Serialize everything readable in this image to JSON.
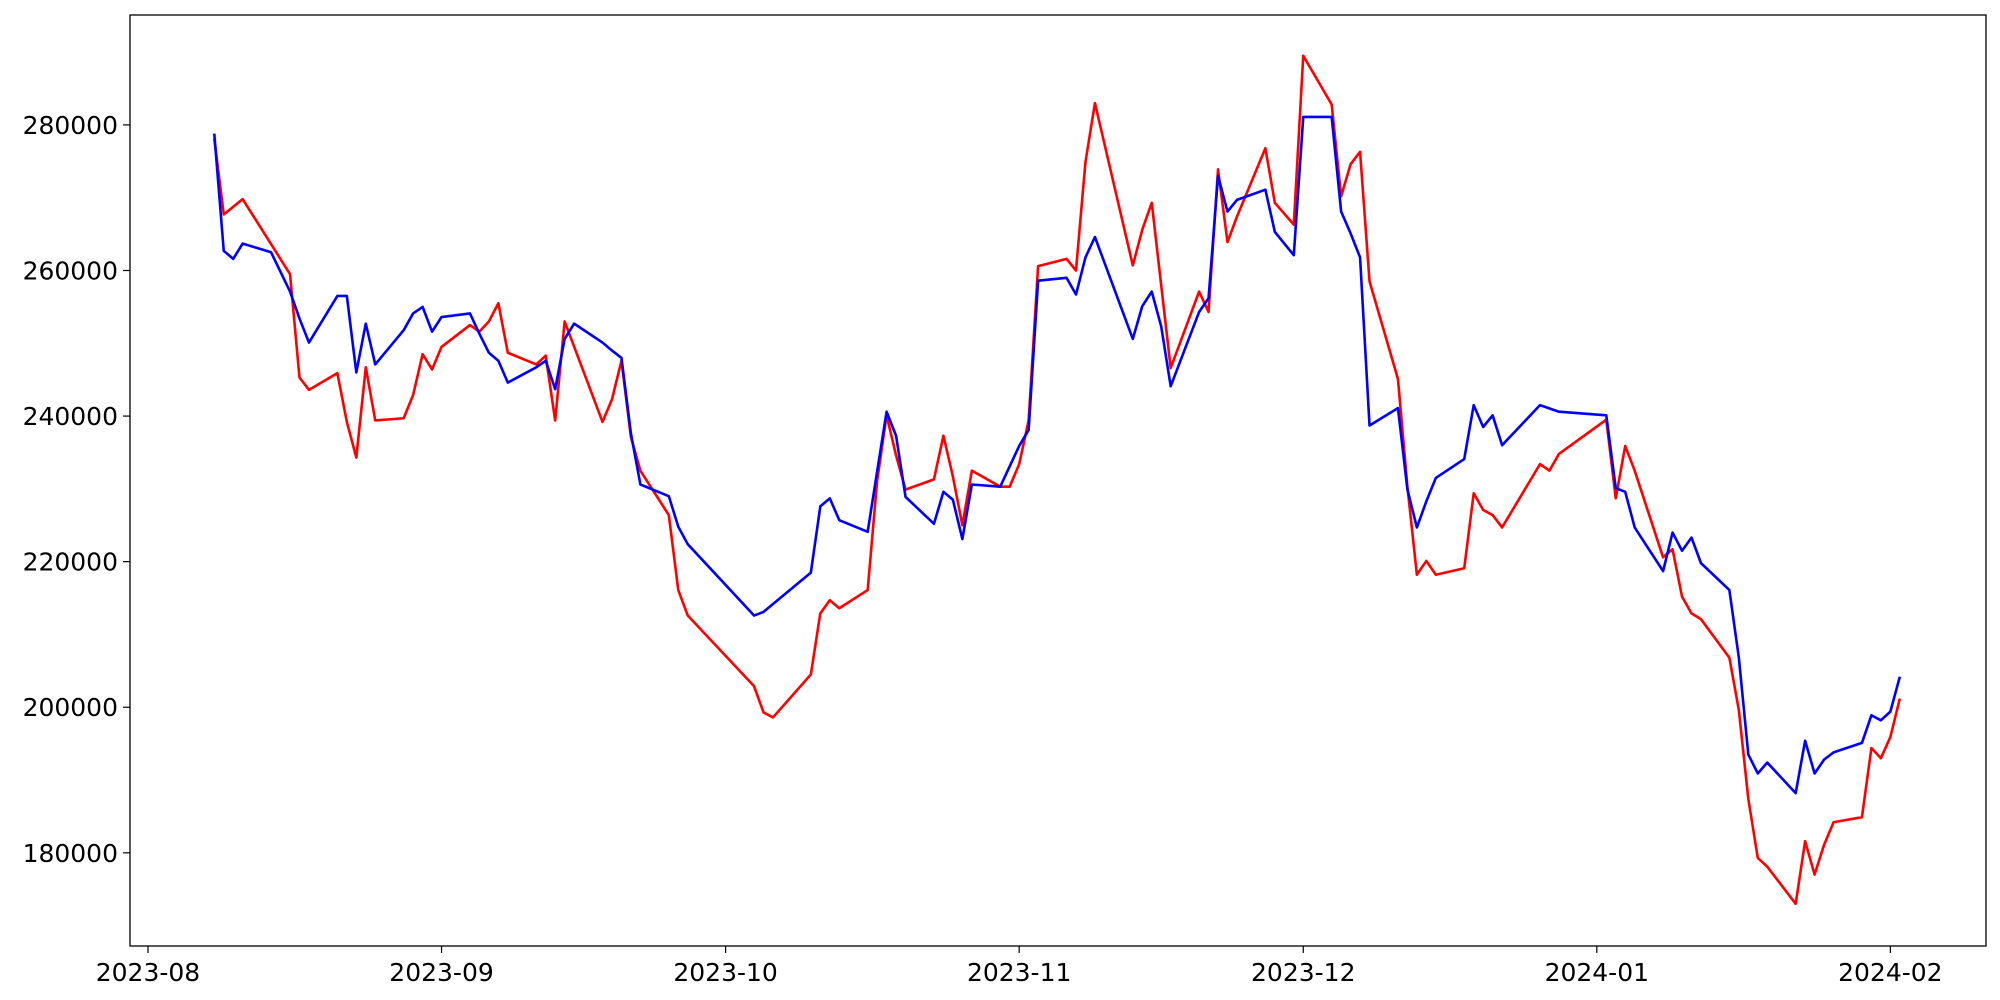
{
  "chart_data": {
    "type": "line",
    "xlim": [
      19568.1,
      19764.1
    ],
    "ylim": [
      167200,
      295100
    ],
    "xticks": [
      {
        "value": 19570,
        "label": "2023-08"
      },
      {
        "value": 19601,
        "label": "2023-09"
      },
      {
        "value": 19631,
        "label": "2023-10"
      },
      {
        "value": 19662,
        "label": "2023-11"
      },
      {
        "value": 19692,
        "label": "2023-12"
      },
      {
        "value": 19723,
        "label": "2024-01"
      },
      {
        "value": 19754,
        "label": "2024-02"
      }
    ],
    "yticks": [
      180000,
      200000,
      220000,
      240000,
      260000,
      280000
    ],
    "grid": false,
    "series": [
      {
        "color": "#ff0000",
        "x": [
          19577,
          19578,
          19580,
          19585,
          19586,
          19587,
          19590,
          19591,
          19592,
          19593,
          19594,
          19597,
          19598,
          19599,
          19600,
          19601,
          19604,
          19605,
          19606,
          19607,
          19608,
          19611,
          19612,
          19613,
          19614,
          19618,
          19619,
          19620,
          19621,
          19622,
          19625,
          19626,
          19627,
          19634,
          19635,
          19636,
          19640,
          19641,
          19642,
          19643,
          19646,
          19647,
          19648,
          19649,
          19650,
          19653,
          19654,
          19655,
          19656,
          19657,
          19660,
          19661,
          19662,
          19663,
          19664,
          19667,
          19668,
          19669,
          19670,
          19674,
          19675,
          19676,
          19678,
          19681,
          19682,
          19683,
          19684,
          19685,
          19688,
          19689,
          19691,
          19692,
          19695,
          19696,
          19697,
          19698,
          19699,
          19702,
          19703,
          19704,
          19705,
          19706,
          19709,
          19710,
          19711,
          19712,
          19713,
          19717,
          19718,
          19719,
          19724,
          19725,
          19726,
          19727,
          19730,
          19731,
          19732,
          19733,
          19734,
          19737,
          19738,
          19739,
          19740,
          19741,
          19744,
          19745,
          19746,
          19747,
          19748,
          19751,
          19752,
          19753,
          19754,
          19755
        ],
        "values": [
          278100,
          267700,
          269800,
          259500,
          245300,
          243600,
          245900,
          239200,
          234300,
          246700,
          239400,
          239700,
          242900,
          248500,
          246400,
          249500,
          252500,
          251600,
          253000,
          255500,
          248700,
          247100,
          248300,
          239400,
          253000,
          239200,
          242300,
          247600,
          237100,
          232500,
          226400,
          216100,
          212600,
          202900,
          199300,
          198600,
          204500,
          212900,
          214700,
          213600,
          216100,
          231100,
          240100,
          234600,
          229900,
          231300,
          237300,
          231700,
          225000,
          232500,
          230300,
          230300,
          233400,
          239400,
          260600,
          261600,
          260000,
          274900,
          283000,
          260700,
          265600,
          269300,
          246600,
          257100,
          254300,
          273900,
          263900,
          267400,
          276800,
          269300,
          266300,
          289500,
          282800,
          270200,
          274600,
          276300,
          258500,
          245100,
          230300,
          218200,
          220100,
          218200,
          219100,
          229400,
          227100,
          226400,
          224700,
          233400,
          232500,
          234800,
          239500,
          228700,
          235900,
          232500,
          220600,
          221700,
          215200,
          212900,
          212100,
          206800,
          199600,
          187400,
          179300,
          178100,
          173000,
          181600,
          177000,
          181100,
          184200,
          184900,
          194400,
          193000,
          195900,
          201200
        ]
      },
      {
        "color": "#0000ff",
        "x": [
          19577,
          19578,
          19579,
          19580,
          19583,
          19585,
          19586,
          19587,
          19590,
          19591,
          19592,
          19593,
          19594,
          19597,
          19598,
          19599,
          19600,
          19601,
          19604,
          19605,
          19606,
          19607,
          19608,
          19611,
          19612,
          19613,
          19614,
          19615,
          19618,
          19619,
          19620,
          19621,
          19622,
          19625,
          19626,
          19627,
          19634,
          19635,
          19640,
          19641,
          19642,
          19643,
          19646,
          19647,
          19648,
          19649,
          19650,
          19653,
          19654,
          19655,
          19656,
          19657,
          19660,
          19662,
          19663,
          19664,
          19667,
          19668,
          19669,
          19670,
          19674,
          19675,
          19676,
          19677,
          19678,
          19681,
          19682,
          19683,
          19684,
          19685,
          19688,
          19689,
          19691,
          19692,
          19695,
          19696,
          19697,
          19698,
          19699,
          19702,
          19703,
          19704,
          19705,
          19706,
          19709,
          19710,
          19711,
          19712,
          19713,
          19717,
          19719,
          19724,
          19725,
          19726,
          19727,
          19730,
          19731,
          19732,
          19733,
          19734,
          19737,
          19738,
          19739,
          19740,
          19741,
          19744,
          19745,
          19746,
          19747,
          19748,
          19751,
          19752,
          19753,
          19754,
          19755
        ],
        "values": [
          278800,
          262700,
          261600,
          263700,
          262500,
          257100,
          253400,
          250100,
          256500,
          256500,
          246000,
          252700,
          247100,
          251800,
          254100,
          255000,
          251600,
          253600,
          254100,
          251300,
          248700,
          247600,
          244600,
          246700,
          247600,
          243700,
          250600,
          252700,
          250100,
          249000,
          248000,
          237600,
          230600,
          229000,
          224800,
          222400,
          212600,
          213100,
          218500,
          227600,
          228700,
          225700,
          224100,
          232400,
          240600,
          237300,
          228900,
          225200,
          229600,
          228500,
          223100,
          230600,
          230300,
          235900,
          238100,
          258600,
          259000,
          256700,
          261800,
          264600,
          250600,
          255100,
          257100,
          252300,
          244100,
          254300,
          256200,
          273000,
          268100,
          269700,
          271100,
          265300,
          262100,
          281100,
          281100,
          268100,
          265100,
          261800,
          238700,
          241100,
          229900,
          224700,
          228300,
          231500,
          234100,
          241500,
          238500,
          240100,
          236000,
          241500,
          240600,
          240100,
          230100,
          229600,
          224700,
          218700,
          224000,
          221500,
          223300,
          219800,
          216100,
          206800,
          193500,
          190900,
          192400,
          188200,
          195400,
          190900,
          192800,
          193800,
          195100,
          198900,
          198200,
          199400,
          204200
        ]
      }
    ]
  }
}
